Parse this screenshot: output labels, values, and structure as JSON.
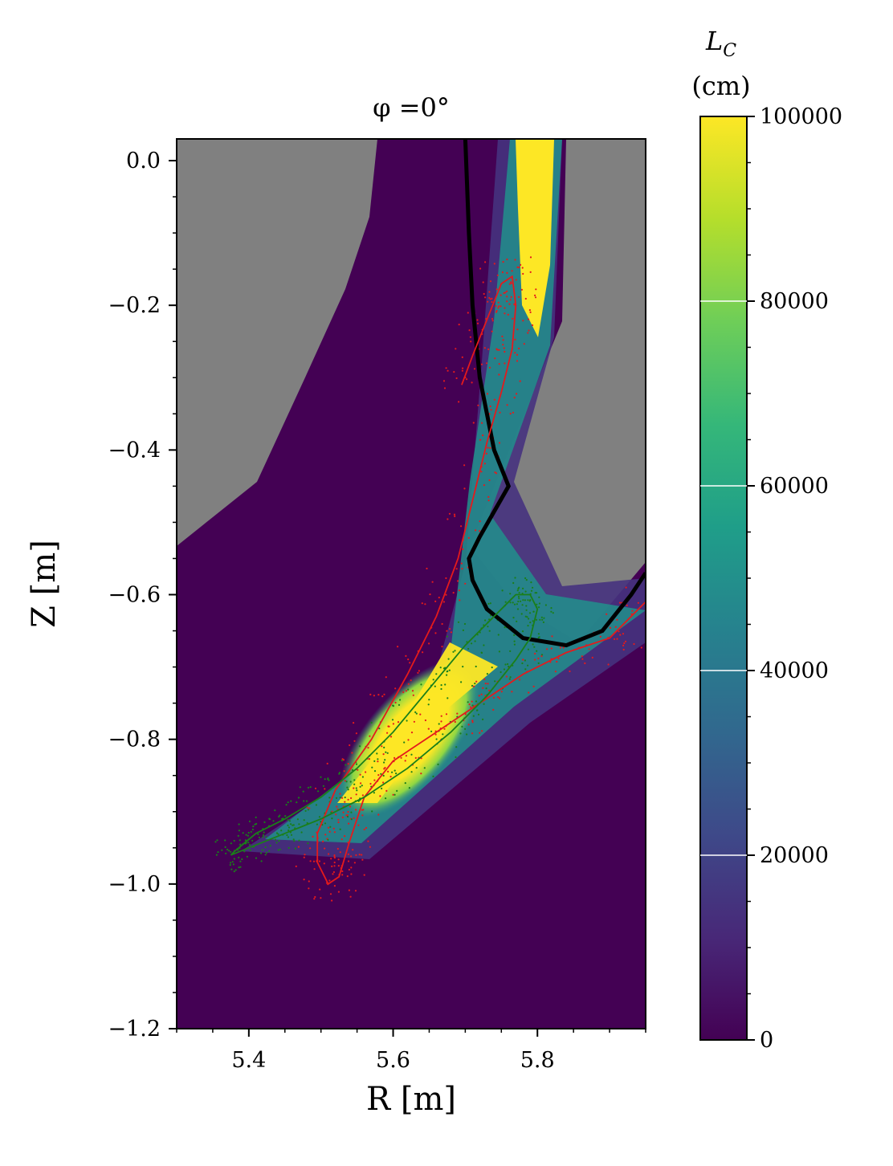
{
  "chart_data": [
    {
      "type": "heatmap",
      "title": "φ =0°",
      "xlabel": "R [m]",
      "ylabel": "Z [m]",
      "xlim": [
        5.3,
        5.95
      ],
      "ylim": [
        -1.2,
        0.03
      ],
      "xticks": [
        {
          "value": 5.4,
          "label": "5.4"
        },
        {
          "value": 5.6,
          "label": "5.6"
        },
        {
          "value": 5.8,
          "label": "5.8"
        }
      ],
      "yticks": [
        {
          "value": 0.0,
          "label": "0.0"
        },
        {
          "value": -0.2,
          "label": "−0.2"
        },
        {
          "value": -0.4,
          "label": "−0.4"
        },
        {
          "value": -0.6,
          "label": "−0.6"
        },
        {
          "value": -0.8,
          "label": "−0.8"
        },
        {
          "value": -1.0,
          "label": "−1.0"
        },
        {
          "value": -1.2,
          "label": "−1.2"
        }
      ],
      "colormap": "viridis",
      "masked_color": "#808080",
      "wall": [
        [
          5.7,
          0.03
        ],
        [
          5.705,
          -0.1
        ],
        [
          5.71,
          -0.2
        ],
        [
          5.72,
          -0.3
        ],
        [
          5.74,
          -0.4
        ],
        [
          5.76,
          -0.45
        ],
        [
          5.72,
          -0.52
        ],
        [
          5.705,
          -0.55
        ],
        [
          5.71,
          -0.58
        ],
        [
          5.73,
          -0.62
        ],
        [
          5.78,
          -0.66
        ],
        [
          5.84,
          -0.67
        ],
        [
          5.89,
          -0.65
        ],
        [
          5.93,
          -0.6
        ],
        [
          5.95,
          -0.57
        ]
      ],
      "red_curve": [
        [
          5.695,
          -0.31
        ],
        [
          5.71,
          -0.27
        ],
        [
          5.73,
          -0.22
        ],
        [
          5.75,
          -0.17
        ],
        [
          5.765,
          -0.16
        ],
        [
          5.77,
          -0.2
        ],
        [
          5.765,
          -0.26
        ],
        [
          5.75,
          -0.32
        ],
        [
          5.73,
          -0.39
        ],
        [
          5.71,
          -0.47
        ],
        [
          5.69,
          -0.55
        ],
        [
          5.66,
          -0.63
        ],
        [
          5.62,
          -0.71
        ],
        [
          5.57,
          -0.8
        ],
        [
          5.52,
          -0.87
        ],
        [
          5.495,
          -0.93
        ],
        [
          5.495,
          -0.97
        ],
        [
          5.51,
          -1.0
        ],
        [
          5.525,
          -0.99
        ],
        [
          5.54,
          -0.94
        ],
        [
          5.56,
          -0.88
        ],
        [
          5.6,
          -0.83
        ],
        [
          5.66,
          -0.79
        ],
        [
          5.72,
          -0.75
        ],
        [
          5.78,
          -0.71
        ],
        [
          5.84,
          -0.68
        ],
        [
          5.9,
          -0.66
        ],
        [
          5.95,
          -0.61
        ]
      ],
      "green_curve": [
        [
          5.375,
          -0.96
        ],
        [
          5.4,
          -0.95
        ],
        [
          5.45,
          -0.93
        ],
        [
          5.5,
          -0.91
        ],
        [
          5.56,
          -0.88
        ],
        [
          5.62,
          -0.84
        ],
        [
          5.68,
          -0.79
        ],
        [
          5.73,
          -0.74
        ],
        [
          5.77,
          -0.69
        ],
        [
          5.79,
          -0.66
        ],
        [
          5.8,
          -0.62
        ],
        [
          5.79,
          -0.6
        ],
        [
          5.77,
          -0.6
        ],
        [
          5.74,
          -0.63
        ],
        [
          5.7,
          -0.67
        ],
        [
          5.65,
          -0.73
        ],
        [
          5.6,
          -0.79
        ],
        [
          5.55,
          -0.84
        ],
        [
          5.5,
          -0.88
        ],
        [
          5.45,
          -0.91
        ],
        [
          5.41,
          -0.93
        ],
        [
          5.38,
          -0.955
        ],
        [
          5.375,
          -0.96
        ]
      ]
    },
    {
      "type": "colorbar",
      "label_symbol": "L",
      "label_sub": "C",
      "label_units": "(cm)",
      "range": [
        0,
        100000
      ],
      "ticks": [
        {
          "value": 0,
          "label": "0"
        },
        {
          "value": 20000,
          "label": "20000"
        },
        {
          "value": 40000,
          "label": "40000"
        },
        {
          "value": 60000,
          "label": "60000"
        },
        {
          "value": 80000,
          "label": "80000"
        },
        {
          "value": 100000,
          "label": "100000"
        }
      ],
      "colors": [
        "#440154",
        "#482878",
        "#3e4989",
        "#31688e",
        "#26828e",
        "#1f9e89",
        "#35b779",
        "#6ece58",
        "#b5de2b",
        "#fde725"
      ]
    }
  ]
}
